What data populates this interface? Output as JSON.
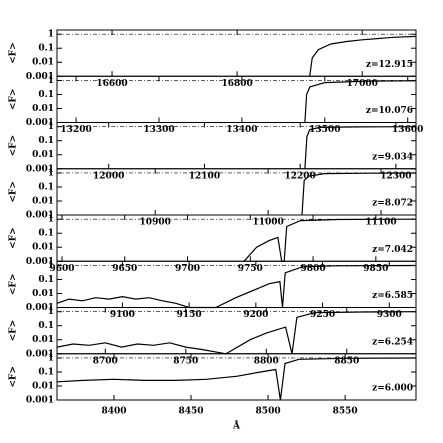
{
  "chart_data": [
    {
      "type": "line",
      "ylabel": "<F>",
      "annotation": "z=12.915",
      "color": "#000000",
      "log_y": true,
      "xlim": [
        16512,
        17086
      ],
      "xticks": [
        16600,
        16800,
        17000
      ],
      "ylim": [
        0.001,
        2
      ],
      "yticks": [
        0.001,
        0.01,
        0.1,
        1
      ],
      "x": [
        16916,
        16920,
        16930,
        16950,
        16975,
        17000,
        17050,
        17086
      ],
      "values": [
        0.001,
        0.02,
        0.08,
        0.2,
        0.3,
        0.4,
        0.6,
        0.7
      ]
    },
    {
      "type": "line",
      "ylabel": "<F>",
      "annotation": "z=10.076",
      "color": "#000000",
      "log_y": true,
      "xlim": [
        13177,
        13610
      ],
      "xticks": [
        13200,
        13300,
        13400,
        13500,
        13600
      ],
      "ylim": [
        0.001,
        2
      ],
      "yticks": [
        0.001,
        0.01,
        0.1,
        1
      ],
      "x": [
        13476,
        13478,
        13482,
        13500,
        13550,
        13610
      ],
      "values": [
        0.001,
        0.1,
        0.35,
        0.7,
        0.9,
        0.95
      ]
    },
    {
      "type": "line",
      "ylabel": "<F>",
      "annotation": "z=9.034",
      "color": "#000000",
      "log_y": true,
      "xlim": [
        11946,
        12321
      ],
      "xticks": [
        12000,
        12100,
        12200,
        12300
      ],
      "ylim": [
        0.001,
        2
      ],
      "yticks": [
        0.001,
        0.01,
        0.1,
        1
      ],
      "x": [
        12205,
        12207,
        12210,
        12220,
        12260,
        12321
      ],
      "values": [
        0.001,
        0.2,
        0.6,
        0.9,
        0.97,
        1
      ]
    },
    {
      "type": "line",
      "ylabel": "<F>",
      "annotation": "z=8.072",
      "color": "#000000",
      "log_y": true,
      "xlim": [
        10813,
        11131
      ],
      "xticks": [
        10900,
        11000,
        11100
      ],
      "ylim": [
        0.001,
        2
      ],
      "yticks": [
        0.001,
        0.01,
        0.1,
        1
      ],
      "x": [
        11030,
        11032,
        11036,
        11050,
        11090,
        11131
      ],
      "values": [
        0.001,
        0.3,
        0.6,
        0.9,
        0.97,
        1
      ]
    },
    {
      "type": "line",
      "ylabel": "<F>",
      "annotation": "z=7.042",
      "color": "#000000",
      "log_y": true,
      "xlim": [
        9596,
        9882
      ],
      "xticks": [
        9600,
        9650,
        9700,
        9750,
        9800,
        9850
      ],
      "ylim": [
        0.001,
        2
      ],
      "yticks": [
        0.001,
        0.01,
        0.1,
        1
      ],
      "x": [
        9745,
        9755,
        9765,
        9772,
        9775,
        9777,
        9779,
        9790,
        9820,
        9882
      ],
      "values": [
        0.001,
        0.01,
        0.03,
        0.05,
        0.001,
        0.001,
        0.3,
        0.8,
        0.95,
        1
      ]
    },
    {
      "type": "line",
      "ylabel": "<F>",
      "annotation": "z=6.585",
      "color": "#000000",
      "log_y": true,
      "xlim": [
        9051,
        9320
      ],
      "xticks": [
        9100,
        9150,
        9200,
        9250,
        9300
      ],
      "ylim": [
        0.001,
        2
      ],
      "yticks": [
        0.001,
        0.01,
        0.1,
        1
      ],
      "x": [
        9051,
        9060,
        9070,
        9080,
        9090,
        9100,
        9110,
        9120,
        9130,
        9140,
        9150,
        9170,
        9185,
        9200,
        9210,
        9218,
        9220,
        9222,
        9235,
        9260,
        9320
      ],
      "values": [
        0.002,
        0.004,
        0.003,
        0.005,
        0.004,
        0.006,
        0.004,
        0.005,
        0.003,
        0.002,
        0.001,
        0.001,
        0.005,
        0.02,
        0.05,
        0.07,
        0.001,
        0.3,
        0.8,
        0.95,
        1
      ]
    },
    {
      "type": "line",
      "ylabel": "<F>",
      "annotation": "z=6.254",
      "color": "#000000",
      "log_y": true,
      "xlim": [
        8670,
        8893
      ],
      "xticks": [
        8700,
        8750,
        8800,
        8850
      ],
      "ylim": [
        0.001,
        2
      ],
      "yticks": [
        0.001,
        0.01,
        0.1,
        1
      ],
      "x": [
        8670,
        8680,
        8690,
        8700,
        8710,
        8720,
        8730,
        8740,
        8750,
        8760,
        8775,
        8790,
        8800,
        8812,
        8816,
        8819,
        8830,
        8860,
        8893
      ],
      "values": [
        0.003,
        0.005,
        0.004,
        0.006,
        0.003,
        0.005,
        0.004,
        0.006,
        0.003,
        0.002,
        0.001,
        0.01,
        0.03,
        0.08,
        0.001,
        0.4,
        0.85,
        0.95,
        1
      ]
    },
    {
      "type": "line",
      "ylabel": "<F>",
      "annotation": "z=6.000",
      "xlabel": "Å",
      "color": "#000000",
      "log_y": true,
      "xlim": [
        8363,
        8596
      ],
      "xticks": [
        8400,
        8450,
        8500,
        8550
      ],
      "ylim": [
        0.001,
        2
      ],
      "yticks": [
        0.001,
        0.01,
        0.1,
        1
      ],
      "x": [
        8363,
        8380,
        8400,
        8420,
        8440,
        8460,
        8480,
        8495,
        8505,
        8508,
        8511,
        8520,
        8550,
        8596
      ],
      "values": [
        0.02,
        0.025,
        0.03,
        0.025,
        0.025,
        0.03,
        0.05,
        0.1,
        0.15,
        0.001,
        0.4,
        0.8,
        0.95,
        1
      ]
    }
  ]
}
